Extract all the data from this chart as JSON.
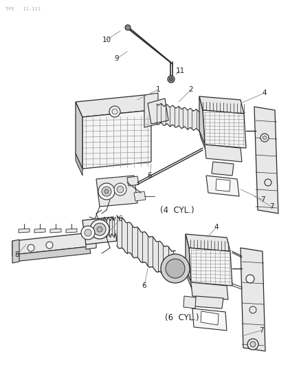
{
  "bg": "#ffffff",
  "lc": "#2a2a2a",
  "lc_thin": "#555555",
  "lc_gray": "#888888",
  "fill_light": "#f5f5f5",
  "fill_mid": "#e8e8e8",
  "fill_dark": "#d0d0d0",
  "fill_darker": "#b8b8b8",
  "header": "5FE   11-111",
  "label_4cyl": "(4  CYL.)",
  "label_6cyl": "(6  CYL.)",
  "fig_w": 4.39,
  "fig_h": 5.33,
  "dpi": 100
}
